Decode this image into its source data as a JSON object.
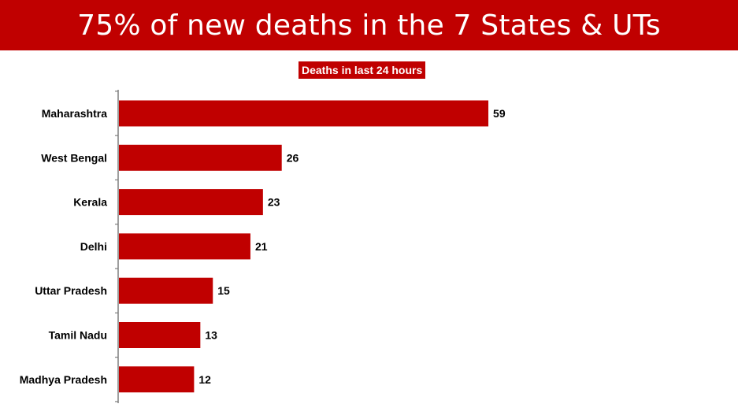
{
  "title": "75% of new deaths in the 7 States & UTs",
  "colors": {
    "banner": "#c00000",
    "bar": "#c00000",
    "text": "#000000"
  },
  "chart_data": {
    "type": "bar",
    "orientation": "horizontal",
    "subtitle": "Deaths in last 24 hours",
    "categories": [
      "Maharashtra",
      "West Bengal",
      "Kerala",
      "Delhi",
      "Uttar Pradesh",
      "Tamil Nadu",
      "Madhya Pradesh"
    ],
    "values": [
      59,
      26,
      23,
      21,
      15,
      13,
      12
    ],
    "data_labels": [
      "59",
      "26",
      "23",
      "21",
      "15",
      "13",
      "12"
    ],
    "xlim": [
      0,
      100
    ],
    "grid": false,
    "legend": "none"
  }
}
